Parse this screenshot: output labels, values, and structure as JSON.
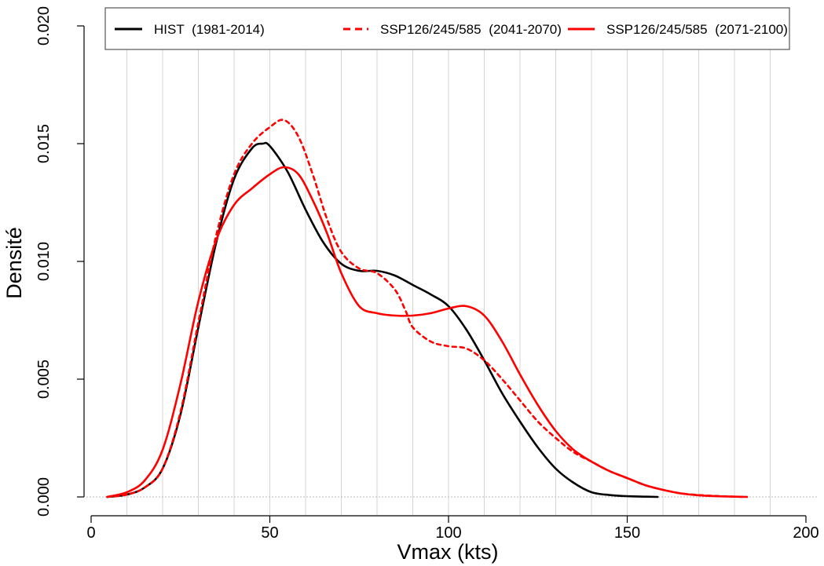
{
  "chart_data": {
    "type": "line",
    "title": "",
    "xlabel": "Vmax (kts)",
    "ylabel": "Densité",
    "xlim": [
      0,
      200
    ],
    "ylim": [
      0,
      0.02
    ],
    "xticks": [
      0,
      50,
      100,
      150,
      200
    ],
    "xtick_labels": [
      "0",
      "50",
      "100",
      "150",
      "200"
    ],
    "yticks": [
      0,
      0.005,
      0.01,
      0.015,
      0.02
    ],
    "ytick_labels": [
      "0.000",
      "0.005",
      "0.010",
      "0.015",
      "0.020"
    ],
    "vertical_gridlines_x": [
      10,
      20,
      30,
      40,
      50,
      60,
      70,
      80,
      90,
      100,
      110,
      120,
      130,
      140,
      150,
      160,
      170,
      180,
      190
    ],
    "legend": {
      "placement": "top",
      "entries": [
        {
          "label": "HIST",
          "period": "(1981-2014)",
          "series": "hist"
        },
        {
          "label": "SSP126/245/585",
          "period": "(2041-2070)",
          "series": "ssp_mid"
        },
        {
          "label": "SSP126/245/585",
          "period": "(2071-2100)",
          "series": "ssp_end"
        }
      ]
    },
    "series": [
      {
        "id": "hist",
        "name": "HIST (1981-2014)",
        "color": "#000000",
        "dash": "solid",
        "x": [
          4.5,
          10,
          15,
          20,
          25,
          30,
          35,
          40,
          45,
          48,
          50,
          55,
          60,
          65,
          70,
          75,
          80,
          85,
          90,
          95,
          100,
          105,
          110,
          115,
          120,
          125,
          130,
          135,
          140,
          145,
          150,
          155,
          158.5
        ],
        "y": [
          0,
          0.0001,
          0.0004,
          0.0012,
          0.0035,
          0.0072,
          0.0108,
          0.0135,
          0.0148,
          0.015,
          0.0149,
          0.0138,
          0.0122,
          0.0108,
          0.0099,
          0.0096,
          0.0096,
          0.0094,
          0.009,
          0.0086,
          0.0081,
          0.0071,
          0.0058,
          0.0044,
          0.0032,
          0.0021,
          0.0012,
          0.0006,
          0.0002,
          8e-05,
          3e-05,
          1e-05,
          0
        ]
      },
      {
        "id": "ssp_mid",
        "name": "SSP126/245/585 (2041-2070)",
        "color": "#ff0000",
        "dash": "dashed",
        "x": [
          4.5,
          10,
          15,
          20,
          25,
          30,
          35,
          40,
          45,
          50,
          54,
          58,
          62,
          66,
          70,
          75,
          80,
          85,
          88,
          90,
          95,
          100,
          105,
          110,
          115,
          120,
          125,
          130,
          135,
          140,
          145,
          150,
          155,
          160,
          165,
          170,
          175,
          180,
          183.5
        ],
        "y": [
          0,
          0.0001,
          0.0004,
          0.0012,
          0.0036,
          0.0074,
          0.0111,
          0.0137,
          0.015,
          0.0157,
          0.016,
          0.0153,
          0.0137,
          0.0118,
          0.0104,
          0.0097,
          0.0095,
          0.0088,
          0.0079,
          0.0072,
          0.0066,
          0.0064,
          0.0063,
          0.0058,
          0.005,
          0.0041,
          0.0032,
          0.0025,
          0.0019,
          0.0015,
          0.0011,
          0.0008,
          0.0005,
          0.0003,
          0.00015,
          8e-05,
          4e-05,
          1e-05,
          0
        ]
      },
      {
        "id": "ssp_end",
        "name": "SSP126/245/585 (2071-2100)",
        "color": "#ff0000",
        "dash": "solid",
        "x": [
          4.5,
          10,
          15,
          20,
          25,
          30,
          35,
          40,
          45,
          50,
          54,
          58,
          62,
          66,
          70,
          75,
          80,
          85,
          90,
          95,
          100,
          105,
          110,
          115,
          120,
          125,
          130,
          135,
          140,
          145,
          150,
          155,
          160,
          165,
          170,
          175,
          180,
          183.5
        ],
        "y": [
          0,
          0.0002,
          0.0007,
          0.002,
          0.0048,
          0.0083,
          0.0109,
          0.0124,
          0.0131,
          0.0137,
          0.014,
          0.0137,
          0.0126,
          0.0112,
          0.0095,
          0.0081,
          0.0078,
          0.0077,
          0.0077,
          0.0078,
          0.008,
          0.0081,
          0.0077,
          0.0066,
          0.0052,
          0.0039,
          0.0028,
          0.002,
          0.0015,
          0.0011,
          0.0008,
          0.0005,
          0.0003,
          0.00015,
          7e-05,
          3e-05,
          1e-05,
          0
        ]
      }
    ]
  }
}
